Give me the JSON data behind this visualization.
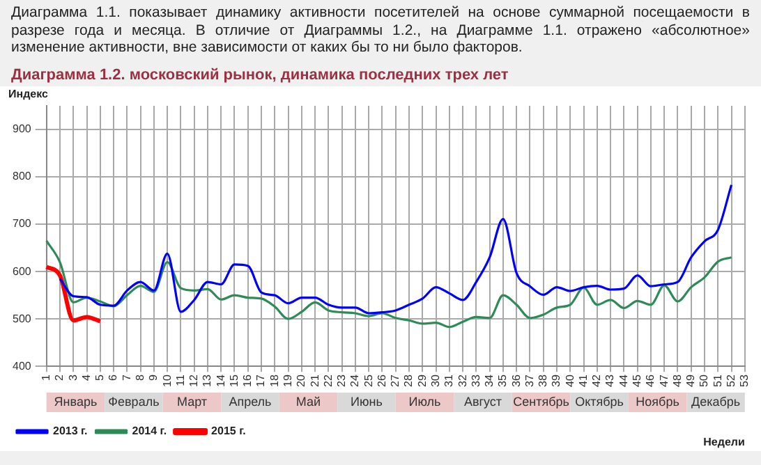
{
  "chart_data": {
    "type": "line",
    "title": "Диаграмма 1.2. московский рынок, динамика последних трех лет",
    "annotations": [
      "Диаграмма 1.1. показывает динамику активности посетителей на основе суммарной посещаемости в разрезе года и месяца. В отличие от Диаграммы 1.2., на Диаграмме 1.1. отражено «абсолютное» изменение активности,  вне зависимости от каких бы то ни было факторов.",
      "Январь",
      "Февраль",
      "Март",
      "Апрель",
      "Май",
      "Июнь",
      "Июль",
      "Август",
      "Сентябрь",
      "Октябрь",
      "Ноябрь",
      "Декабрь"
    ],
    "xlabel": "Недели",
    "ylabel": "Индекс",
    "categories": [
      "1",
      "2",
      "3",
      "4",
      "5",
      "6",
      "7",
      "8",
      "9",
      "10",
      "11",
      "12",
      "13",
      "14",
      "15",
      "16",
      "17",
      "18",
      "19",
      "20",
      "21",
      "22",
      "23",
      "24",
      "25",
      "26",
      "27",
      "28",
      "29",
      "30",
      "31",
      "32",
      "33",
      "34",
      "35",
      "36",
      "37",
      "38",
      "39",
      "40",
      "41",
      "42",
      "43",
      "44",
      "45",
      "46",
      "47",
      "48",
      "49",
      "50",
      "51",
      "52",
      "53"
    ],
    "series": [
      {
        "name": "2013 г.",
        "color": "#0000ff",
        "values": [
          null,
          585,
          548,
          546,
          530,
          528,
          560,
          578,
          560,
          638,
          515,
          540,
          578,
          573,
          615,
          612,
          556,
          550,
          533,
          545,
          545,
          530,
          524,
          524,
          512,
          514,
          518,
          530,
          543,
          567,
          554,
          540,
          578,
          630,
          711,
          597,
          569,
          551,
          567,
          559,
          567,
          570,
          562,
          564,
          592,
          569,
          573,
          578,
          630,
          664,
          688,
          783,
          null
        ]
      },
      {
        "name": "2014 г.",
        "color": "#2e8b57",
        "values": [
          665,
          620,
          535,
          545,
          537,
          527,
          550,
          570,
          557,
          620,
          565,
          560,
          563,
          541,
          550,
          545,
          543,
          526,
          500,
          515,
          535,
          518,
          514,
          512,
          506,
          512,
          502,
          497,
          490,
          492,
          483,
          494,
          504,
          502,
          550,
          530,
          502,
          509,
          524,
          530,
          566,
          530,
          540,
          523,
          538,
          530,
          571,
          537,
          567,
          588,
          621,
          630,
          null
        ]
      },
      {
        "name": "2015 г.",
        "color": "#ff0000",
        "values": [
          610,
          592,
          497,
          504,
          495,
          null,
          null,
          null,
          null,
          null,
          null,
          null,
          null,
          null,
          null,
          null,
          null,
          null,
          null,
          null,
          null,
          null,
          null,
          null,
          null,
          null,
          null,
          null,
          null,
          null,
          null,
          null,
          null,
          null,
          null,
          null,
          null,
          null,
          null,
          null,
          null,
          null,
          null,
          null,
          null,
          null,
          null,
          null,
          null,
          null,
          null,
          null,
          null
        ]
      }
    ],
    "ylim": [
      400,
      950
    ],
    "yticks": [
      400,
      500,
      600,
      700,
      800,
      900
    ],
    "grid": true,
    "legend": "bottom left",
    "marker": "none",
    "line_style": "solid"
  }
}
